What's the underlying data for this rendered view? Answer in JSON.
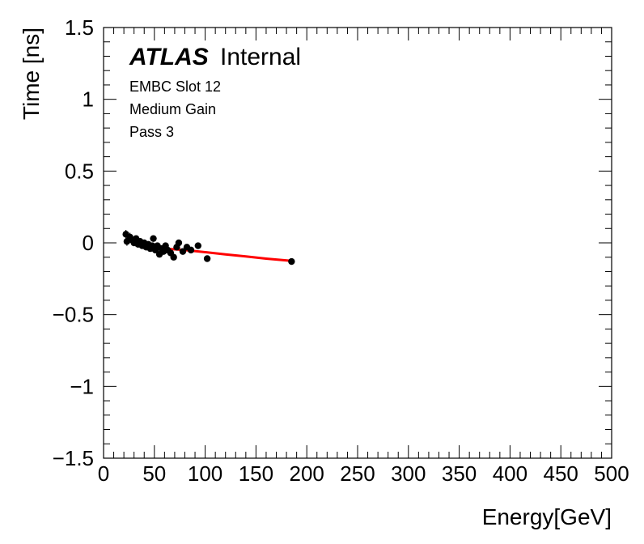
{
  "chart_data": {
    "type": "scatter",
    "title": "",
    "xlabel": "Energy[GeV]",
    "ylabel": "Time [ns]",
    "xlim": [
      0,
      500
    ],
    "ylim": [
      -1.5,
      1.5
    ],
    "x_major_ticks": [
      0,
      50,
      100,
      150,
      200,
      250,
      300,
      350,
      400,
      450,
      500
    ],
    "x_tick_labels": [
      "0",
      "50",
      "100",
      "150",
      "200",
      "250",
      "300",
      "350",
      "400",
      "450",
      "500"
    ],
    "y_major_ticks": [
      -1.5,
      -1,
      -0.5,
      0,
      0.5,
      1,
      1.5
    ],
    "y_tick_labels": [
      "−1.5",
      "−1",
      "−0.5",
      "0",
      "0.5",
      "1",
      "1.5"
    ],
    "annotations": {
      "experiment": "ATLAS",
      "status": "Internal",
      "lines": [
        "EMBC Slot 12",
        "Medium Gain",
        "Pass 3"
      ]
    },
    "series": [
      {
        "name": "data",
        "kind": "points-with-errors",
        "color": "#000000",
        "points": [
          {
            "x": 22,
            "y": 0.06,
            "err": 0.03
          },
          {
            "x": 23,
            "y": 0.01,
            "err": 0.03
          },
          {
            "x": 26,
            "y": 0.04,
            "err": 0.03
          },
          {
            "x": 28,
            "y": 0.02,
            "err": 0.02
          },
          {
            "x": 30,
            "y": 0.0,
            "err": 0.02
          },
          {
            "x": 32,
            "y": 0.03,
            "err": 0.02
          },
          {
            "x": 34,
            "y": -0.01,
            "err": 0.02
          },
          {
            "x": 36,
            "y": 0.01,
            "err": 0.02
          },
          {
            "x": 38,
            "y": -0.02,
            "err": 0.02
          },
          {
            "x": 40,
            "y": 0.0,
            "err": 0.02
          },
          {
            "x": 42,
            "y": -0.03,
            "err": 0.02
          },
          {
            "x": 44,
            "y": -0.01,
            "err": 0.02
          },
          {
            "x": 46,
            "y": -0.04,
            "err": 0.02
          },
          {
            "x": 48,
            "y": -0.02,
            "err": 0.02
          },
          {
            "x": 49,
            "y": 0.03,
            "err": 0.02
          },
          {
            "x": 51,
            "y": -0.05,
            "err": 0.02
          },
          {
            "x": 53,
            "y": -0.02,
            "err": 0.02
          },
          {
            "x": 55,
            "y": -0.08,
            "err": 0.02
          },
          {
            "x": 57,
            "y": -0.04,
            "err": 0.02
          },
          {
            "x": 59,
            "y": -0.06,
            "err": 0.02
          },
          {
            "x": 61,
            "y": -0.02,
            "err": 0.02
          },
          {
            "x": 63,
            "y": -0.05,
            "err": 0.02
          },
          {
            "x": 66,
            "y": -0.07,
            "err": 0.02
          },
          {
            "x": 69,
            "y": -0.1,
            "err": 0.02
          },
          {
            "x": 72,
            "y": -0.03,
            "err": 0.02
          },
          {
            "x": 74,
            "y": 0.0,
            "err": 0.02
          },
          {
            "x": 78,
            "y": -0.06,
            "err": 0.02
          },
          {
            "x": 82,
            "y": -0.03,
            "err": 0.02
          },
          {
            "x": 86,
            "y": -0.05,
            "err": 0.02
          },
          {
            "x": 93,
            "y": -0.02,
            "err": 0.02
          },
          {
            "x": 102,
            "y": -0.11,
            "err": 0.02
          },
          {
            "x": 185,
            "y": -0.13,
            "err": 0.02
          }
        ]
      },
      {
        "name": "fit",
        "kind": "line",
        "color": "#ff0000",
        "x": [
          22,
          30,
          40,
          50,
          60,
          70,
          80,
          100,
          120,
          140,
          160,
          185
        ],
        "y": [
          0.05,
          0.02,
          -0.01,
          -0.03,
          -0.04,
          -0.045,
          -0.05,
          -0.065,
          -0.08,
          -0.095,
          -0.11,
          -0.125
        ]
      }
    ]
  }
}
